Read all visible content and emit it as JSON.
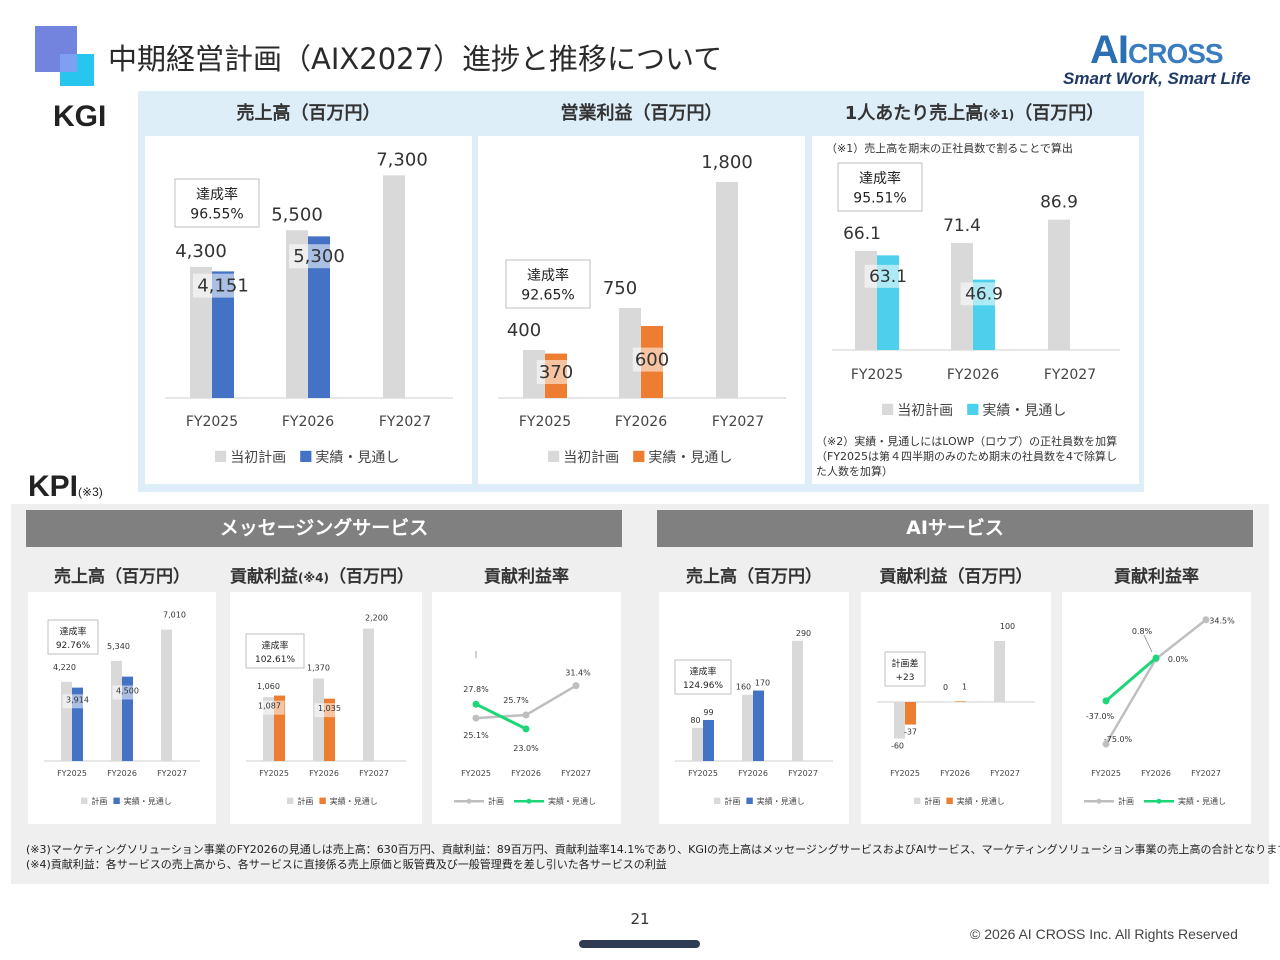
{
  "header": {
    "title": "中期経営計画（AIX2027）進捗と推移について",
    "brand_ai": "AI",
    "brand_cross": "CROSS",
    "tagline": "Smart Work, Smart Life"
  },
  "kgi": {
    "label": "KGI",
    "sales_head": "売上高（百万円）",
    "profit_head": "営業利益（百万円）",
    "per_head": "1人あたり売上高",
    "per_head_note_mark": "(※1)",
    "per_head_unit": "（百万円）",
    "note1": "（※1）売上高を期末の正社員数で割ることで算出",
    "note2_lines": [
      "（※2）実績・見通しにはLOWP（ロウプ）の正社員数を加算",
      "（FY2025は第４四半期のみのため期末の社員数を4で除算し",
      "た人数を加算）"
    ]
  },
  "kpi": {
    "label": "KPI",
    "label_note": "(※3)",
    "band_message": "メッセージングサービス",
    "band_ai": "AIサービス",
    "msg_sales_head": "売上高（百万円）",
    "msg_contrib_head": "貢献利益",
    "msg_contrib_note": "(※4)",
    "msg_contrib_unit": "（百万円）",
    "msg_rate_head": "貢献利益率",
    "ai_sales_head": "売上高（百万円）",
    "ai_contrib_head": "貢献利益（百万円）",
    "ai_rate_head": "貢献利益率"
  },
  "footnotes": {
    "note3": "(※3)マーケティングソリューション事業のFY2026の見通しは売上高：630百万円、貢献利益：89百万円、貢献利益率14.1%であり、KGIの売上高はメッセージングサービスおよびAIサービス、マーケティングソリューション事業の売上高の合計となります。",
    "note4": "(※4)貢献利益：各サービスの売上高から、各サービスに直接係る売上原価と販管費及び一般管理費を差し引いた各サービスの利益"
  },
  "footer": {
    "page": "21",
    "copyright": "© 2026 AI CROSS Inc. All Rights Reserved"
  },
  "colors": {
    "plan": "#d9d9d9",
    "blue": "#4472c4",
    "orange": "#ed7d31",
    "cyan": "#4dd0ec",
    "green": "#1ed67a",
    "plan_line": "#bfbfbf"
  },
  "chart_data": [
    {
      "id": "kgi_sales",
      "type": "bar",
      "title": "売上高（百万円）",
      "categories": [
        "FY2025",
        "FY2026",
        "FY2027"
      ],
      "series": [
        {
          "name": "当初計画",
          "values": [
            4300,
            5500,
            7300
          ],
          "labels": [
            "4,300",
            "5,500",
            "7,300"
          ]
        },
        {
          "name": "実績・見通し",
          "values": [
            4151,
            5300,
            null
          ],
          "labels": [
            "4,151",
            "5,300",
            ""
          ]
        }
      ],
      "annotation": {
        "title": "達成率",
        "value": "96.55%"
      },
      "legend": "bottom"
    },
    {
      "id": "kgi_profit",
      "type": "bar",
      "title": "営業利益（百万円）",
      "categories": [
        "FY2025",
        "FY2026",
        "FY2027"
      ],
      "series": [
        {
          "name": "当初計画",
          "values": [
            400,
            750,
            1800
          ],
          "labels": [
            "400",
            "750",
            "1,800"
          ]
        },
        {
          "name": "実績・見通し",
          "values": [
            370,
            600,
            null
          ],
          "labels": [
            "370",
            "600",
            ""
          ]
        }
      ],
      "annotation": {
        "title": "達成率",
        "value": "92.65%"
      },
      "legend": "bottom"
    },
    {
      "id": "kgi_per_head",
      "type": "bar",
      "title": "1人あたり売上高（百万円）",
      "categories": [
        "FY2025",
        "FY2026",
        "FY2027"
      ],
      "series": [
        {
          "name": "当初計画",
          "values": [
            66.1,
            71.4,
            86.9
          ],
          "labels": [
            "66.1",
            "71.4",
            "86.9"
          ]
        },
        {
          "name": "実績・見通し",
          "values": [
            63.1,
            46.9,
            null
          ],
          "labels": [
            "63.1",
            "46.9",
            ""
          ]
        }
      ],
      "annotation": {
        "title": "達成率",
        "value": "95.51%"
      },
      "legend": "bottom"
    },
    {
      "id": "msg_sales",
      "type": "bar",
      "title": "売上高（百万円）",
      "categories": [
        "FY2025",
        "FY2026",
        "FY2027"
      ],
      "series": [
        {
          "name": "計画",
          "values": [
            4220,
            5340,
            7010
          ],
          "labels": [
            "4,220",
            "5,340",
            "7,010"
          ]
        },
        {
          "name": "実績・見通し",
          "values": [
            3914,
            4500,
            null
          ],
          "labels": [
            "3,914",
            "4,500",
            ""
          ]
        }
      ],
      "annotation": {
        "title": "達成率",
        "value": "92.76%"
      },
      "legend": "bottom"
    },
    {
      "id": "msg_contrib",
      "type": "bar",
      "title": "貢献利益（百万円）",
      "categories": [
        "FY2025",
        "FY2026",
        "FY2027"
      ],
      "series": [
        {
          "name": "計画",
          "values": [
            1060,
            1370,
            2200
          ],
          "labels": [
            "1,060",
            "1,370",
            "2,200"
          ]
        },
        {
          "name": "実績・見通し",
          "values": [
            1087,
            1035,
            null
          ],
          "labels": [
            "1,087",
            "1,035",
            ""
          ]
        }
      ],
      "annotation": {
        "title": "達成率",
        "value": "102.61%"
      },
      "legend": "bottom"
    },
    {
      "id": "msg_rate",
      "type": "line",
      "title": "貢献利益率",
      "categories": [
        "FY2025",
        "FY2026",
        "FY2027"
      ],
      "series": [
        {
          "name": "計画",
          "values": [
            25.1,
            25.7,
            31.4
          ],
          "labels": [
            "25.1%",
            "25.7%",
            "31.4%"
          ]
        },
        {
          "name": "実績・見通し",
          "values": [
            27.8,
            23.0,
            null
          ],
          "labels": [
            "27.8%",
            "23.0%",
            ""
          ]
        }
      ],
      "legend": "bottom"
    },
    {
      "id": "ai_sales",
      "type": "bar",
      "title": "売上高（百万円）",
      "categories": [
        "FY2025",
        "FY2026",
        "FY2027"
      ],
      "series": [
        {
          "name": "計画",
          "values": [
            80,
            160,
            290
          ],
          "labels": [
            "80",
            "160",
            "290"
          ]
        },
        {
          "name": "実績・見通し",
          "values": [
            99,
            170,
            null
          ],
          "labels": [
            "99",
            "170",
            ""
          ]
        }
      ],
      "annotation": {
        "title": "達成率",
        "value": "124.96%"
      },
      "legend": "bottom"
    },
    {
      "id": "ai_contrib",
      "type": "bar",
      "title": "貢献利益（百万円）",
      "categories": [
        "FY2025",
        "FY2026",
        "FY2027"
      ],
      "series": [
        {
          "name": "計画",
          "values": [
            -60,
            0,
            100
          ],
          "labels": [
            "-60",
            "0",
            "100"
          ]
        },
        {
          "name": "実績・見通し",
          "values": [
            -37,
            1,
            null
          ],
          "labels": [
            "-37",
            "1",
            ""
          ]
        }
      ],
      "annotation": {
        "title": "計画差",
        "value": "+23"
      },
      "legend": "bottom"
    },
    {
      "id": "ai_rate",
      "type": "line",
      "title": "貢献利益率",
      "categories": [
        "FY2025",
        "FY2026",
        "FY2027"
      ],
      "series": [
        {
          "name": "計画",
          "values": [
            -75.0,
            0.0,
            34.5
          ],
          "labels": [
            "-75.0%",
            "0.0%",
            "34.5%"
          ]
        },
        {
          "name": "実績・見通し",
          "values": [
            -37.0,
            0.8,
            null
          ],
          "labels": [
            "-37.0%",
            "0.8%",
            ""
          ]
        }
      ],
      "legend": "bottom"
    }
  ]
}
